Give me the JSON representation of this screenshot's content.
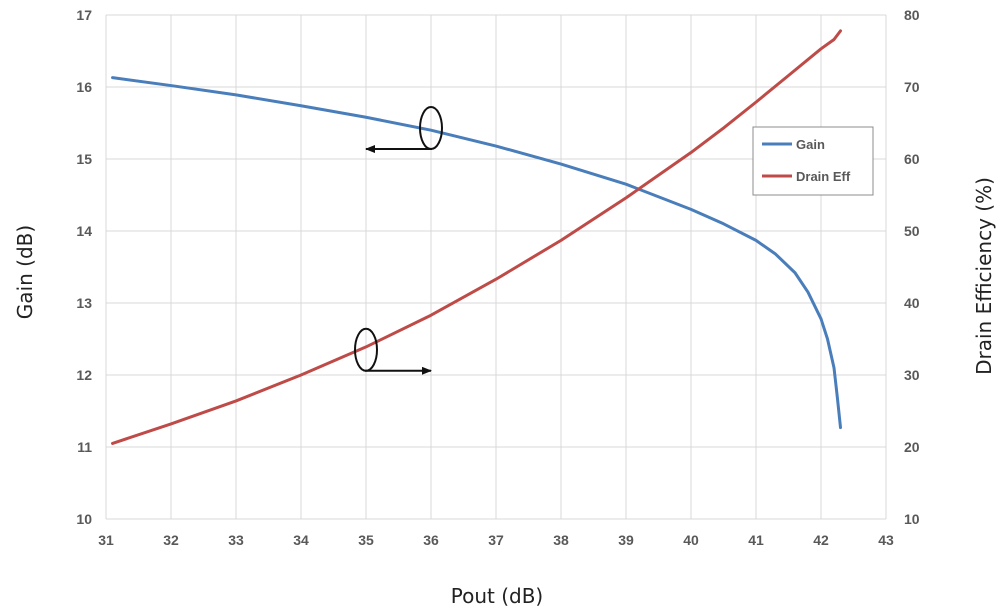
{
  "chart_data": {
    "type": "line",
    "xlabel": "Pout (dB)",
    "ylabel_left": "Gain (dB)",
    "ylabel_right": "Drain Efficiency (%)",
    "xlim": [
      31,
      43
    ],
    "ylim_left": [
      10,
      17
    ],
    "ylim_right": [
      10,
      80
    ],
    "x_ticks": [
      "31",
      "32",
      "33",
      "34",
      "35",
      "36",
      "37",
      "38",
      "39",
      "40",
      "41",
      "42",
      "43"
    ],
    "y_left_ticks": [
      "10",
      "11",
      "12",
      "13",
      "14",
      "15",
      "16",
      "17"
    ],
    "y_right_ticks": [
      "10",
      "20",
      "30",
      "40",
      "50",
      "60",
      "70",
      "80"
    ],
    "grid": true,
    "legend_position": "right",
    "series": [
      {
        "name": "Gain",
        "axis": "left",
        "color": "#4a7ebb",
        "x": [
          31.1,
          32,
          33,
          34,
          35,
          36,
          37,
          38,
          39,
          40,
          40.5,
          41,
          41.3,
          41.6,
          41.8,
          42,
          42.1,
          42.2,
          42.25,
          42.3
        ],
        "y": [
          16.13,
          16.02,
          15.89,
          15.74,
          15.58,
          15.4,
          15.18,
          14.93,
          14.65,
          14.3,
          14.1,
          13.87,
          13.68,
          13.42,
          13.15,
          12.78,
          12.5,
          12.1,
          11.7,
          11.27
        ]
      },
      {
        "name": "Drain Eff",
        "axis": "right",
        "color": "#be4b48",
        "x": [
          31.1,
          32,
          33,
          34,
          35,
          36,
          37,
          38,
          39,
          40,
          40.5,
          41,
          41.5,
          42,
          42.2,
          42.3
        ],
        "y": [
          20.5,
          23.2,
          26.4,
          30.0,
          33.9,
          38.3,
          43.3,
          48.7,
          54.6,
          60.9,
          64.3,
          67.9,
          71.6,
          75.3,
          76.6,
          77.8
        ]
      }
    ],
    "annotations": [
      {
        "kind": "ellipse-arrow",
        "direction": "left",
        "x": 36.0,
        "y": 15.43,
        "arrow_to_x": 35.0
      },
      {
        "kind": "ellipse-arrow",
        "direction": "right",
        "x": 35.0,
        "y": 12.35,
        "arrow_to_x": 36.0
      }
    ]
  }
}
